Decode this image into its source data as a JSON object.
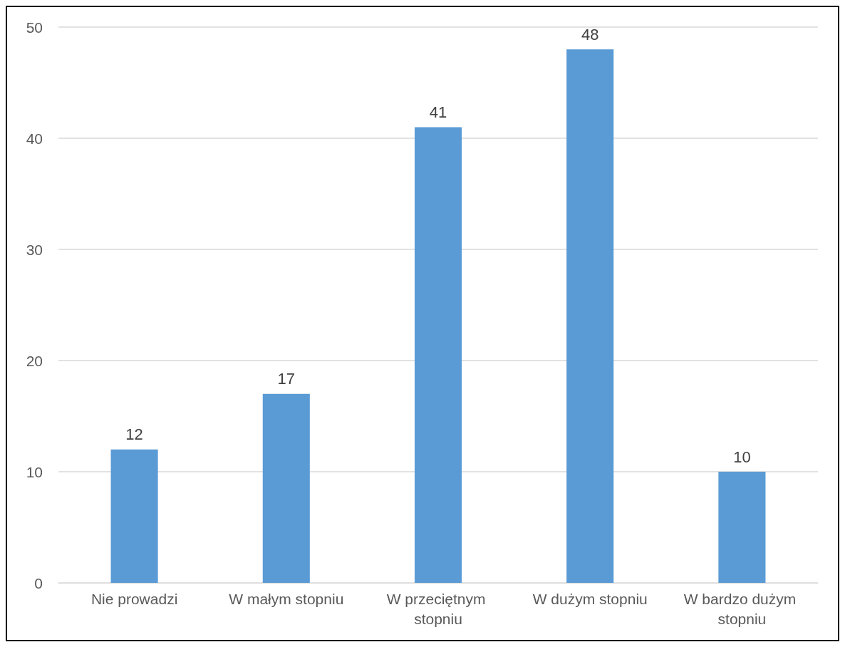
{
  "chart_data": {
    "type": "bar",
    "categories": [
      "Nie prowadzi",
      "W małym stopniu",
      "W przeciętnym stopniu",
      "W dużym stopniu",
      "W bardzo dużym stopniu"
    ],
    "values": [
      12,
      17,
      41,
      48,
      10
    ],
    "color": "#5b9bd5",
    "ylim": [
      0,
      50
    ],
    "yticks": [
      0,
      10,
      20,
      30,
      40,
      50
    ],
    "grid": "y",
    "data_labels": true
  }
}
